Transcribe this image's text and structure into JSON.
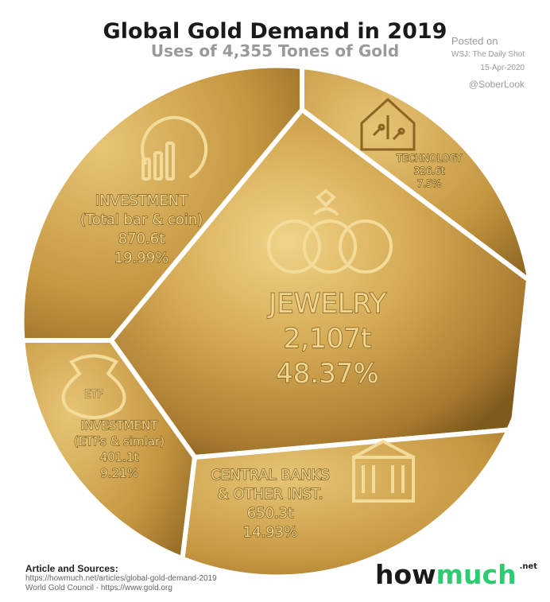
{
  "header": {
    "title": "Global Gold Demand in 2019",
    "subtitle": "Uses of 4,355 Tones of Gold",
    "posted_on": "Posted on",
    "source_name": "WSJ: The Daily Shot",
    "posted_date": "15-Apr-2020",
    "handle": "@SoberLook"
  },
  "chart_data": {
    "type": "pie",
    "title": "Global Gold Demand in 2019",
    "subtitle": "Uses of 4,355 Tones of Gold",
    "slices": [
      {
        "label": "JEWELRY",
        "value_text": "2,107t",
        "value": 2107,
        "percent_text": "48.37%",
        "percent": 48.37
      },
      {
        "label": "INVESTMENT (Total bar & coin)",
        "label_lines": [
          "INVESTMENT",
          "(Total bar & coin)"
        ],
        "value_text": "870.6t",
        "value": 870.6,
        "percent_text": "19.99%",
        "percent": 19.99
      },
      {
        "label": "CENTRAL BANKS & OTHER INST.",
        "label_lines": [
          "CENTRAL BANKS",
          "& OTHER INST."
        ],
        "value_text": "650.3t",
        "value": 650.3,
        "percent_text": "14.93%",
        "percent": 14.93
      },
      {
        "label": "INVESTMENT (ETFs & simlar)",
        "label_lines": [
          "INVESTMENT",
          "(ETFs & simlar)"
        ],
        "value_text": "401.1t",
        "value": 401.1,
        "percent_text": "9.21%",
        "percent": 9.21
      },
      {
        "label": "TECHNOLOGY",
        "value_text": "326.6t",
        "value": 326.6,
        "percent_text": "7.5%",
        "percent": 7.5
      }
    ],
    "icon_names": [
      "rings-icon",
      "bar-chart-icon",
      "bank-icon",
      "money-bag-icon",
      "circuit-house-icon"
    ],
    "icon_text_etf": "ETF",
    "colors": {
      "gold_light": "#e3bf6a",
      "gold_mid": "#c9993f",
      "gold_dark": "#8a6420",
      "label_text": "#f0d58f",
      "label_outline": "#7d5a1c"
    }
  },
  "footer": {
    "title": "Article and Sources:",
    "link1": "https://howmuch.net/articles/global-gold-demand-2019",
    "link2": "World Gold Council - https://www.gold.org",
    "brand_part1": "how",
    "brand_part2": "much",
    "brand_suffix": ".net"
  }
}
